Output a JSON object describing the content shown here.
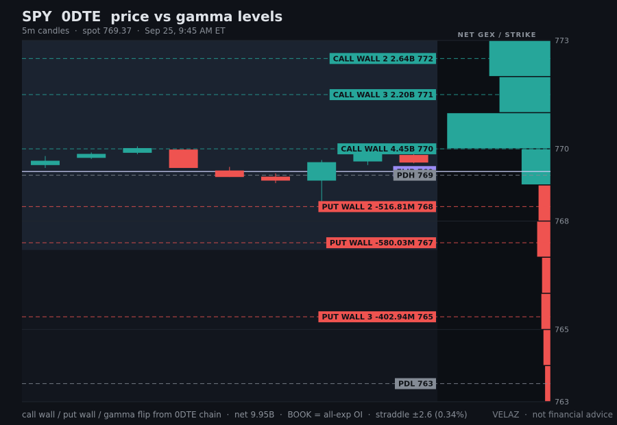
{
  "title": "SPY  0DTE  price vs gamma levels",
  "subtitle": "5m candles  ·  spot 769.37  ·  Sep 25, 9:45 AM ET",
  "footer_left": "call wall / put wall / gamma flip from 0DTE chain  ·  net 9.95B  ·  BOOK = all-exp OI  ·  straddle ±2.6 (0.34%)",
  "footer_right": "VELAZ  ·  not financial advice",
  "colors": {
    "background": "#0f1218",
    "panel_shaded": "#1b2330",
    "call": "#26a69a",
    "put": "#ef5350",
    "flip": "#9b8cf5",
    "neutral": "#848b95"
  },
  "chart_data": [
    {
      "type": "candlestick",
      "x": [
        "c1",
        "c2",
        "c3",
        "c4",
        "c5",
        "c6",
        "c7",
        "c8",
        "c9"
      ],
      "candles": [
        {
          "open": 769.55,
          "close": 769.67,
          "high": 769.8,
          "low": 769.47,
          "dir": "up"
        },
        {
          "open": 769.75,
          "close": 769.86,
          "high": 769.9,
          "low": 769.72,
          "dir": "up"
        },
        {
          "open": 769.89,
          "close": 770.02,
          "high": 770.07,
          "low": 769.85,
          "dir": "up"
        },
        {
          "open": 769.98,
          "close": 769.47,
          "high": 769.98,
          "low": 769.47,
          "dir": "down"
        },
        {
          "open": 769.4,
          "close": 769.22,
          "high": 769.5,
          "low": 769.22,
          "dir": "down"
        },
        {
          "open": 769.23,
          "close": 769.12,
          "high": 769.32,
          "low": 769.05,
          "dir": "down"
        },
        {
          "open": 769.12,
          "close": 769.63,
          "high": 769.69,
          "low": 768.45,
          "dir": "up"
        },
        {
          "open": 769.65,
          "close": 769.93,
          "high": 769.93,
          "low": 769.55,
          "dir": "up"
        },
        {
          "open": 769.83,
          "close": 769.62,
          "high": 769.95,
          "low": 769.6,
          "dir": "down"
        }
      ],
      "ylim": [
        763,
        773
      ],
      "levels": [
        {
          "label": "CALL WALL 2  2.64B 772",
          "price": 772.5,
          "kind": "call"
        },
        {
          "label": "CALL WALL 3  2.20B 771",
          "price": 771.5,
          "kind": "call"
        },
        {
          "label": "CALL WALL  4.45B 770",
          "price": 770.0,
          "kind": "call"
        },
        {
          "label": "FLIP 769",
          "price": 769.37,
          "kind": "flip"
        },
        {
          "label": "PDH 769",
          "price": 769.27,
          "kind": "neutral"
        },
        {
          "label": "PUT WALL 2  -516.81M 768",
          "price": 768.4,
          "kind": "put"
        },
        {
          "label": "PUT WALL  -580.03M 767",
          "price": 767.4,
          "kind": "put"
        },
        {
          "label": "PUT WALL 3  -402.94M 765",
          "price": 765.35,
          "kind": "put"
        },
        {
          "label": "PDL 763",
          "price": 763.5,
          "kind": "neutral"
        }
      ],
      "shaded_range": [
        767.2,
        773
      ]
    },
    {
      "type": "bar",
      "title": "NET GEX / STRIKE",
      "orientation": "horizontal",
      "tick_labels": [
        "773",
        "770",
        "768",
        "765",
        "763"
      ],
      "tick_values": [
        773,
        770,
        768,
        765,
        763
      ],
      "bars": [
        {
          "price": 772.5,
          "value": 2.64
        },
        {
          "price": 771.5,
          "value": 2.2
        },
        {
          "price": 770.5,
          "value": 4.45
        },
        {
          "price": 769.5,
          "value": 1.25
        },
        {
          "price": 768.5,
          "value": -0.52
        },
        {
          "price": 767.5,
          "value": -0.58
        },
        {
          "price": 766.5,
          "value": -0.37
        },
        {
          "price": 765.5,
          "value": -0.4
        },
        {
          "price": 764.5,
          "value": -0.31
        },
        {
          "price": 763.5,
          "value": -0.24
        }
      ],
      "xlim": [
        -4.45,
        4.45
      ]
    }
  ]
}
